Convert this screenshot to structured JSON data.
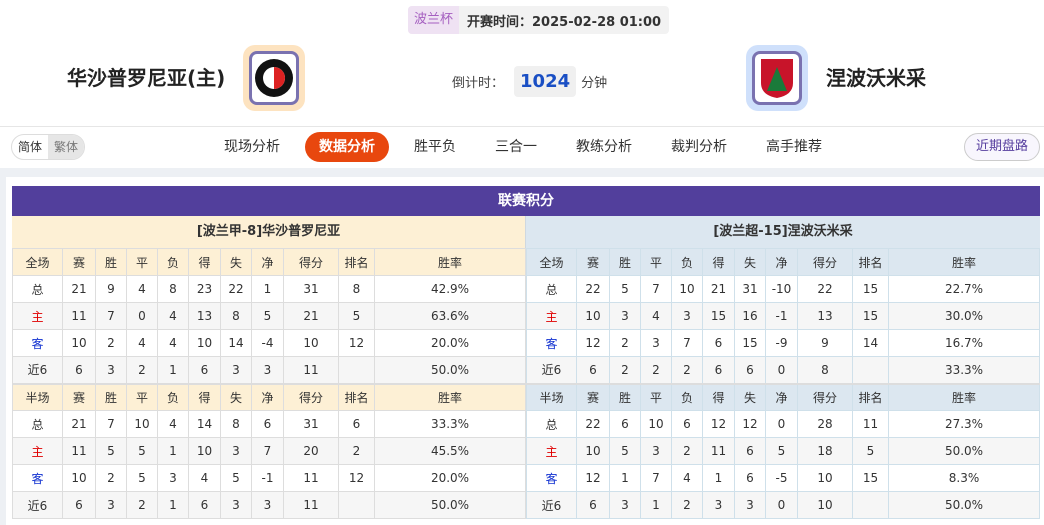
{
  "header": {
    "competition": "波兰杯",
    "kickoff": "开赛时间：2025-02-28 01:00",
    "home_team": "华沙普罗尼亚(主)",
    "away_team": "涅波沃米采",
    "countdown_label": "倒计时：",
    "countdown_value": "1024",
    "countdown_unit": "分钟",
    "home_logo": "POLONIA WARSZAWA",
    "away_logo": "PUSZCZA"
  },
  "nav": {
    "lang_simplified": "简体",
    "lang_traditional": "繁体",
    "tabs": [
      "现场分析",
      "数据分析",
      "胜平负",
      "三合一",
      "教练分析",
      "裁判分析",
      "高手推荐"
    ],
    "active_tab": 1,
    "recent_button": "近期盘路"
  },
  "section": {
    "title": "联赛积分"
  },
  "columns_full": [
    "全场",
    "赛",
    "胜",
    "平",
    "负",
    "得",
    "失",
    "净",
    "得分",
    "排名",
    "胜率"
  ],
  "columns_half": [
    "半场",
    "赛",
    "胜",
    "平",
    "负",
    "得",
    "失",
    "净",
    "得分",
    "排名",
    "胜率"
  ],
  "home": {
    "label": "[波兰甲-8]华沙普罗尼亚",
    "full": [
      [
        "总",
        "21",
        "9",
        "4",
        "8",
        "23",
        "22",
        "1",
        "31",
        "8",
        "42.9%"
      ],
      [
        "主",
        "11",
        "7",
        "0",
        "4",
        "13",
        "8",
        "5",
        "21",
        "5",
        "63.6%"
      ],
      [
        "客",
        "10",
        "2",
        "4",
        "4",
        "10",
        "14",
        "-4",
        "10",
        "12",
        "20.0%"
      ],
      [
        "近6",
        "6",
        "3",
        "2",
        "1",
        "6",
        "3",
        "3",
        "11",
        "",
        "50.0%"
      ]
    ],
    "half": [
      [
        "总",
        "21",
        "7",
        "10",
        "4",
        "14",
        "8",
        "6",
        "31",
        "6",
        "33.3%"
      ],
      [
        "主",
        "11",
        "5",
        "5",
        "1",
        "10",
        "3",
        "7",
        "20",
        "2",
        "45.5%"
      ],
      [
        "客",
        "10",
        "2",
        "5",
        "3",
        "4",
        "5",
        "-1",
        "11",
        "12",
        "20.0%"
      ],
      [
        "近6",
        "6",
        "3",
        "2",
        "1",
        "6",
        "3",
        "3",
        "11",
        "",
        "50.0%"
      ]
    ]
  },
  "away": {
    "label": "[波兰超-15]涅波沃米采",
    "full": [
      [
        "总",
        "22",
        "5",
        "7",
        "10",
        "21",
        "31",
        "-10",
        "22",
        "15",
        "22.7%"
      ],
      [
        "主",
        "10",
        "3",
        "4",
        "3",
        "15",
        "16",
        "-1",
        "13",
        "15",
        "30.0%"
      ],
      [
        "客",
        "12",
        "2",
        "3",
        "7",
        "6",
        "15",
        "-9",
        "9",
        "14",
        "16.7%"
      ],
      [
        "近6",
        "6",
        "2",
        "2",
        "2",
        "6",
        "6",
        "0",
        "8",
        "",
        "33.3%"
      ]
    ],
    "half": [
      [
        "总",
        "22",
        "6",
        "10",
        "6",
        "12",
        "12",
        "0",
        "28",
        "11",
        "27.3%"
      ],
      [
        "主",
        "10",
        "5",
        "3",
        "2",
        "11",
        "6",
        "5",
        "18",
        "5",
        "50.0%"
      ],
      [
        "客",
        "12",
        "1",
        "7",
        "4",
        "1",
        "6",
        "-5",
        "10",
        "15",
        "8.3%"
      ],
      [
        "近6",
        "6",
        "3",
        "1",
        "2",
        "3",
        "3",
        "0",
        "10",
        "",
        "50.0%"
      ]
    ]
  },
  "colors": {
    "accent": "#e8470e",
    "section": "#523f9c",
    "home_text": "#e00000",
    "away_text": "#1030d0"
  }
}
